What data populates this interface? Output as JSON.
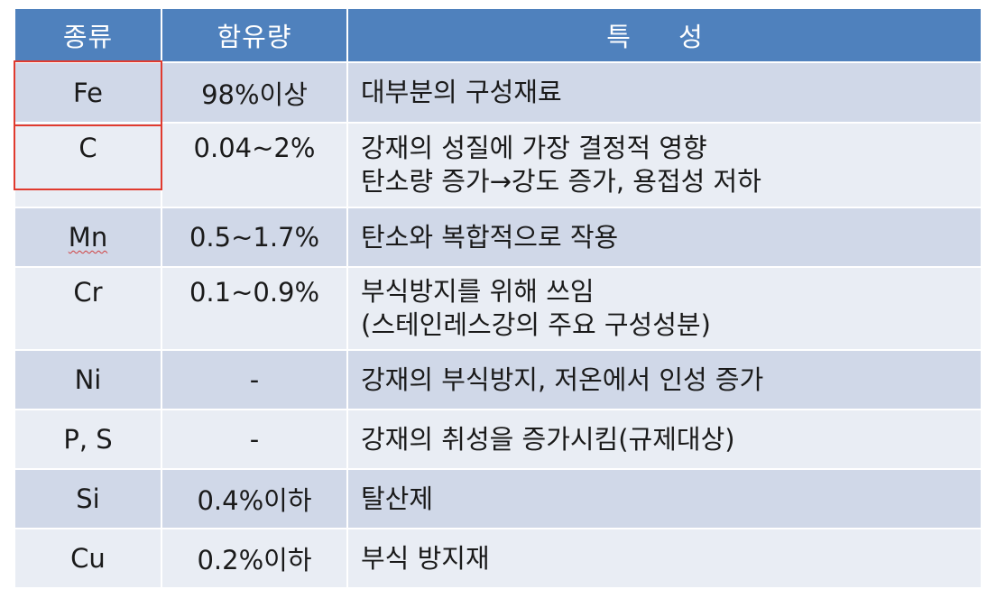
{
  "header": {
    "col1": "종류",
    "col2": "함유량",
    "col3": "특 성"
  },
  "rows": [
    {
      "element": "Fe",
      "content": "98%이상",
      "lines": [
        "대부분의 구성재료"
      ]
    },
    {
      "element": "C",
      "content": "0.04~2%",
      "lines": [
        "강재의 성질에 가장 결정적 영향",
        "탄소량 증가→강도 증가, 용접성 저하"
      ]
    },
    {
      "element": "Mn",
      "content": "0.5~1.7%",
      "lines": [
        "탄소와 복합적으로 작용"
      ]
    },
    {
      "element": "Cr",
      "content": "0.1~0.9%",
      "lines": [
        "부식방지를 위해 쓰임",
        " (스테인레스강의 주요 구성성분)"
      ]
    },
    {
      "element": "Ni",
      "content": "-",
      "lines": [
        "강재의 부식방지, 저온에서 인성 증가"
      ]
    },
    {
      "element": "P, S",
      "content": "-",
      "lines": [
        "강재의 취성을 증가시킴(규제대상)"
      ]
    },
    {
      "element": "Si",
      "content": "0.4%이하",
      "lines": [
        "탈산제"
      ]
    },
    {
      "element": "Cu",
      "content": "0.2%이하",
      "lines": [
        "부식 방지재"
      ]
    }
  ],
  "colors": {
    "header_bg": "#4f81bd",
    "row_dark": "#d0d8e8",
    "row_light": "#e9edf4",
    "highlight_border": "#e03a2e"
  }
}
